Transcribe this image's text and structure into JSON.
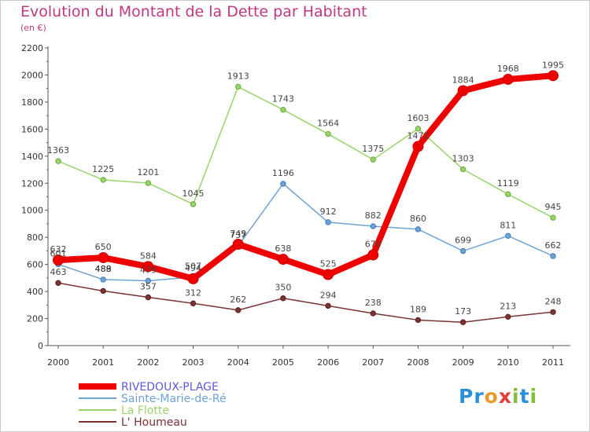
{
  "title": "Evolution du Montant de la Dette par Habitant",
  "subtitle": "(en €)",
  "logo_text": "Proxiti",
  "chart_data": {
    "type": "line",
    "title": "Evolution du Montant de la Dette par Habitant",
    "subtitle": "(en €)",
    "xlabel": "",
    "ylabel": "",
    "ylim": [
      0,
      2200
    ],
    "yticks": [
      0,
      200,
      400,
      600,
      800,
      1000,
      1200,
      1400,
      1600,
      1800,
      2000,
      2200
    ],
    "x": [
      "2000",
      "2001",
      "2002",
      "2003",
      "2004",
      "2005",
      "2006",
      "2007",
      "2008",
      "2009",
      "2010",
      "2011"
    ],
    "grid": false,
    "legend_position": "bottom-left",
    "series": [
      {
        "name": "RIVEDOUX-PLAGE",
        "color": "#ee0000",
        "emphasis": true,
        "values": [
          632,
          650,
          584,
          494,
          749,
          638,
          525,
          670,
          1472,
          1884,
          1968,
          1995
        ],
        "labels": [
          "632",
          "650",
          "584",
          "494",
          "749",
          "638",
          "525",
          "670",
          "1472",
          "1884",
          "1968",
          "1995"
        ]
      },
      {
        "name": "Sainte-Marie-de-Ré",
        "color": "#6fa3d4",
        "emphasis": false,
        "values": [
          601,
          488,
          479,
          507,
          737,
          1196,
          912,
          882,
          860,
          699,
          811,
          662
        ],
        "labels": [
          "601",
          "488",
          "479",
          "507",
          "737",
          "1196",
          "912",
          "882",
          "860",
          "699",
          "811",
          "662"
        ]
      },
      {
        "name": "La Flotte",
        "color": "#99d46a",
        "emphasis": false,
        "values": [
          1363,
          1225,
          1201,
          1045,
          1913,
          1743,
          1564,
          1375,
          1603,
          1303,
          1119,
          945
        ],
        "labels": [
          "1363",
          "1225",
          "1201",
          "1045",
          "1913",
          "1743",
          "1564",
          "1375",
          "1603",
          "1303",
          "1119",
          "945"
        ]
      },
      {
        "name": "L' Houmeau",
        "color": "#7a3232",
        "emphasis": false,
        "values": [
          463,
          404,
          357,
          312,
          262,
          350,
          294,
          238,
          189,
          173,
          213,
          248
        ],
        "labels": [
          "463",
          "",
          "357",
          "312",
          "262",
          "350",
          "294",
          "238",
          "189",
          "173",
          "213",
          "248"
        ]
      }
    ],
    "label_overlaps": [
      {
        "x": "2001",
        "text": "489"
      },
      {
        "x": "2001",
        "text": "488"
      }
    ]
  }
}
